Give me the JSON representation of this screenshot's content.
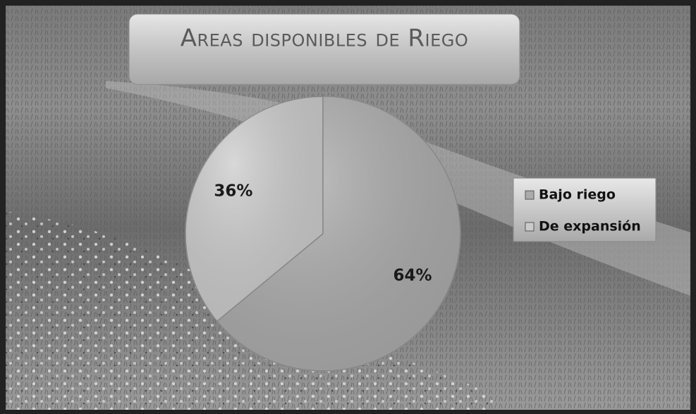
{
  "chart_data": {
    "type": "pie",
    "title": "Areas disponibles de Riego",
    "series": [
      {
        "name": "Bajo riego",
        "color": "#ababab",
        "values": [
          64
        ],
        "value_labels": [
          "64%"
        ]
      },
      {
        "name": "De expansión",
        "color": "#cbcbcb",
        "values": [
          36
        ],
        "value_labels": [
          "36%"
        ]
      }
    ],
    "legend": "right"
  }
}
